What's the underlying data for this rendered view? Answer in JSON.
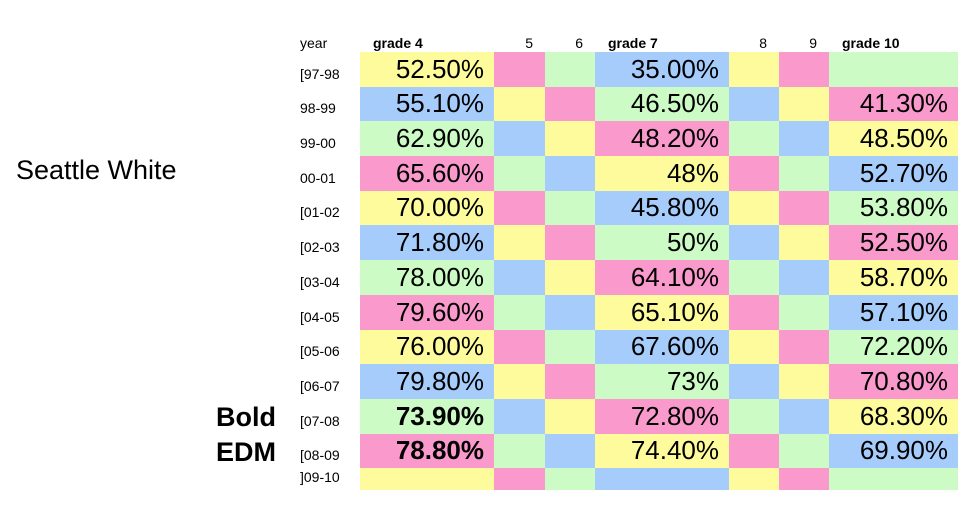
{
  "side_label": "Seattle White",
  "bold_label": "Bold",
  "edm_label": "EDM",
  "header": {
    "year": "year",
    "grade4": "grade 4",
    "g5": "5",
    "g6": "6",
    "grade7": "grade 7",
    "g8": "8",
    "g9": "9",
    "grade10": "grade 10"
  },
  "colors": {
    "yellow": "#fdfb9c",
    "pink": "#fa99cc",
    "green": "#ccfbc5",
    "blue": "#a6ccfb"
  },
  "rows": [
    {
      "year": "[97-98",
      "g4": "52.50%",
      "g7": "35.00%",
      "g10": ""
    },
    {
      "year": "98-99",
      "g4": "55.10%",
      "g7": "46.50%",
      "g10": "41.30%"
    },
    {
      "year": "99-00",
      "g4": "62.90%",
      "g7": "48.20%",
      "g10": "48.50%"
    },
    {
      "year": "00-01",
      "g4": "65.60%",
      "g7": "48%",
      "g10": "52.70%"
    },
    {
      "year": "[01-02",
      "g4": "70.00%",
      "g7": "45.80%",
      "g10": "53.80%"
    },
    {
      "year": "[02-03",
      "g4": "71.80%",
      "g7": "50%",
      "g10": "52.50%"
    },
    {
      "year": "[03-04",
      "g4": "78.00%",
      "g7": "64.10%",
      "g10": "58.70%"
    },
    {
      "year": "[04-05",
      "g4": "79.60%",
      "g7": "65.10%",
      "g10": "57.10%"
    },
    {
      "year": "[05-06",
      "g4": "76.00%",
      "g7": "67.60%",
      "g10": "72.20%"
    },
    {
      "year": "[06-07",
      "g4": "79.80%",
      "g7": "73%",
      "g10": "70.80%"
    },
    {
      "year": "[07-08",
      "g4": "73.90%",
      "g7": "72.80%",
      "g10": "68.30%"
    },
    {
      "year": "[08-09",
      "g4": "78.80%",
      "g7": "74.40%",
      "g10": "69.90%"
    },
    {
      "year": "]09-10",
      "g4": "",
      "g7": "",
      "g10": ""
    }
  ]
}
